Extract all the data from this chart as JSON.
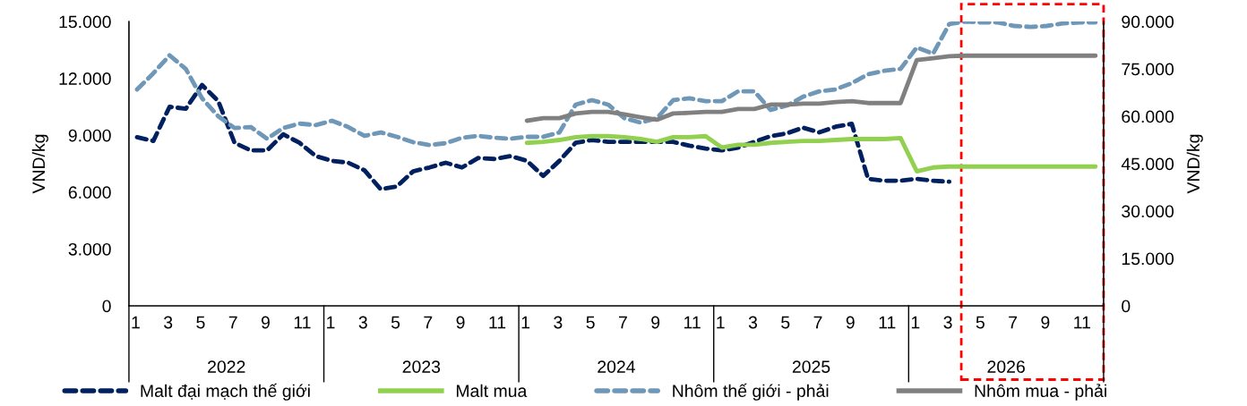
{
  "chart_data": {
    "type": "line",
    "categories": [
      "1",
      null,
      "3",
      null,
      "5",
      null,
      "7",
      null,
      "9",
      null,
      "11",
      null,
      "1",
      null,
      "3",
      null,
      "5",
      null,
      "7",
      null,
      "9",
      null,
      "11",
      null,
      "1",
      null,
      "3",
      null,
      "5",
      null,
      "7",
      null,
      "9",
      null,
      "11",
      null,
      "1",
      null,
      "3",
      null,
      "5",
      null,
      "7",
      null,
      "9",
      null,
      "11",
      null,
      "1",
      null,
      "3",
      null,
      "5",
      null,
      "7",
      null,
      "9",
      null,
      "11",
      null
    ],
    "annotations": [
      "2022",
      "2023",
      "2024",
      "2025",
      "2026"
    ],
    "ylabel": "VND/kg",
    "y2label": "VND/kg",
    "ylim": [
      0,
      15000
    ],
    "yticks": [
      {
        "value": 0,
        "label": "0"
      },
      {
        "value": 3000,
        "label": "3.000"
      },
      {
        "value": 6000,
        "label": "6.000"
      },
      {
        "value": 9000,
        "label": "9.000"
      },
      {
        "value": 12000,
        "label": "12.000"
      },
      {
        "value": 15000,
        "label": "15.000"
      }
    ],
    "y2lim": [
      0,
      90000
    ],
    "y2ticks": [
      {
        "value": 0,
        "label": "0"
      },
      {
        "value": 15000,
        "label": "15.000"
      },
      {
        "value": 30000,
        "label": "30.000"
      },
      {
        "value": 45000,
        "label": "45.000"
      },
      {
        "value": 60000,
        "label": "60.000"
      },
      {
        "value": 75000,
        "label": "75.000"
      },
      {
        "value": 90000,
        "label": "90.000"
      }
    ],
    "legend": "bottom",
    "grid": false,
    "series": [
      {
        "name": "Malt đại mạch thế giới",
        "color": "#002060",
        "line_style": "dashed",
        "values": [
          8900,
          8700,
          10500,
          10400,
          11650,
          10800,
          8600,
          8200,
          8200,
          9050,
          8600,
          7900,
          7650,
          7550,
          7150,
          6150,
          6300,
          7100,
          7300,
          7550,
          7300,
          7800,
          7750,
          7900,
          7650,
          6850,
          7650,
          8600,
          8750,
          8650,
          8650,
          8650,
          8650,
          8650,
          8450,
          8300,
          8200,
          8350,
          8650,
          8950,
          9100,
          9400,
          9150,
          9450,
          9600,
          6700,
          6600,
          6600,
          6700,
          6600,
          6550,
          null,
          null,
          null,
          null,
          null,
          null,
          null,
          null,
          null
        ]
      },
      {
        "name": "Malt mua",
        "color": "#92d050",
        "line_style": "solid",
        "values": [
          null,
          null,
          null,
          null,
          null,
          null,
          null,
          null,
          null,
          null,
          null,
          null,
          null,
          null,
          null,
          null,
          null,
          null,
          null,
          null,
          null,
          null,
          null,
          null,
          8600,
          8650,
          8750,
          8900,
          8950,
          8950,
          8900,
          8800,
          8650,
          8900,
          8900,
          8950,
          8350,
          8500,
          8500,
          8600,
          8650,
          8700,
          8700,
          8750,
          8800,
          8800,
          8800,
          8850,
          7100,
          7300,
          7350,
          7350,
          7350,
          7350,
          7350,
          7350,
          7350,
          7350,
          7350,
          7350
        ]
      },
      {
        "name": "Nhôm thế giới - phải",
        "color": "#6f97b8",
        "line_style": "dashed",
        "axis": "y2",
        "values": [
          68500,
          73600,
          79300,
          75000,
          65700,
          60000,
          56300,
          56600,
          52900,
          56300,
          57700,
          57200,
          58600,
          56600,
          53800,
          54900,
          53500,
          51800,
          50900,
          51500,
          53200,
          53800,
          53200,
          52900,
          53500,
          53500,
          54900,
          63700,
          65100,
          63700,
          59400,
          58000,
          59400,
          65100,
          65700,
          64800,
          64800,
          67900,
          67900,
          62000,
          63400,
          66200,
          67900,
          68500,
          70500,
          73300,
          74400,
          75000,
          81800,
          79800,
          89200,
          90000,
          89700,
          89700,
          88600,
          88300,
          88600,
          89400,
          89700,
          89700
        ]
      },
      {
        "name": "Nhôm mua - phải",
        "color": "#808080",
        "line_style": "solid",
        "axis": "y2",
        "values": [
          null,
          null,
          null,
          null,
          null,
          null,
          null,
          null,
          null,
          null,
          null,
          null,
          null,
          null,
          null,
          null,
          null,
          null,
          null,
          null,
          null,
          null,
          null,
          null,
          58600,
          59400,
          59400,
          60900,
          61400,
          61400,
          60600,
          59700,
          58900,
          60900,
          61100,
          61400,
          61400,
          62300,
          62300,
          63700,
          63700,
          64000,
          64000,
          64500,
          64800,
          64200,
          64200,
          64200,
          77800,
          78400,
          79000,
          79200,
          79200,
          79200,
          79200,
          79200,
          79200,
          79200,
          79200,
          79200
        ]
      }
    ]
  }
}
